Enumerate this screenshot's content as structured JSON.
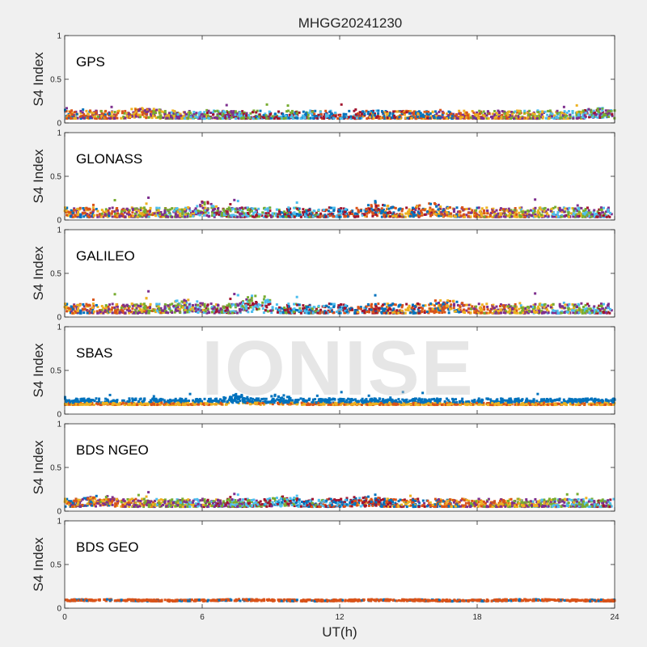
{
  "chart_data": {
    "type": "scatter",
    "title": "MHGG20241230",
    "xlabel": "UT(h)",
    "ylabel": "S4 Index",
    "xlim": [
      0,
      24
    ],
    "ylim": [
      0,
      1
    ],
    "x_ticks": [
      "0",
      "6",
      "12",
      "18",
      "24"
    ],
    "y_ticks": [
      "0",
      "0.5",
      "1"
    ],
    "watermark": "IONISE",
    "grid": false,
    "colors": [
      "#0072BD",
      "#D95319",
      "#EDB120",
      "#7E2F8E",
      "#77AC30",
      "#4DBEEE",
      "#A2142F"
    ],
    "panels": [
      {
        "label": "GPS",
        "level_mean": 0.08,
        "spread": 0.05,
        "peak": 0.22,
        "bumps": [
          {
            "x": 3.5,
            "h": 0.06
          },
          {
            "x": 23.5,
            "h": 0.07
          }
        ]
      },
      {
        "label": "GLONASS",
        "level_mean": 0.07,
        "spread": 0.06,
        "peak": 0.26,
        "bumps": [
          {
            "x": 6.2,
            "h": 0.08
          },
          {
            "x": 13.5,
            "h": 0.07
          },
          {
            "x": 16,
            "h": 0.08
          }
        ]
      },
      {
        "label": "GALILEO",
        "level_mean": 0.08,
        "spread": 0.06,
        "peak": 0.3,
        "bumps": [
          {
            "x": 8.4,
            "h": 0.13
          },
          {
            "x": 16.6,
            "h": 0.08
          },
          {
            "x": 5.3,
            "h": 0.08
          }
        ]
      },
      {
        "label": "SBAS",
        "level_mean": 0.13,
        "spread": 0.04,
        "peak": 0.26,
        "bumps": [
          {
            "x": 7.5,
            "h": 0.07
          },
          {
            "x": 9.3,
            "h": 0.05
          }
        ]
      },
      {
        "label": "BDS NGEO",
        "level_mean": 0.08,
        "spread": 0.05,
        "peak": 0.22,
        "bumps": [
          {
            "x": 1.5,
            "h": 0.06
          },
          {
            "x": 9.5,
            "h": 0.05
          },
          {
            "x": 13,
            "h": 0.05
          }
        ]
      },
      {
        "label": "BDS GEO",
        "level_mean": 0.09,
        "spread": 0.01,
        "peak": 0.11,
        "bumps": []
      }
    ]
  }
}
